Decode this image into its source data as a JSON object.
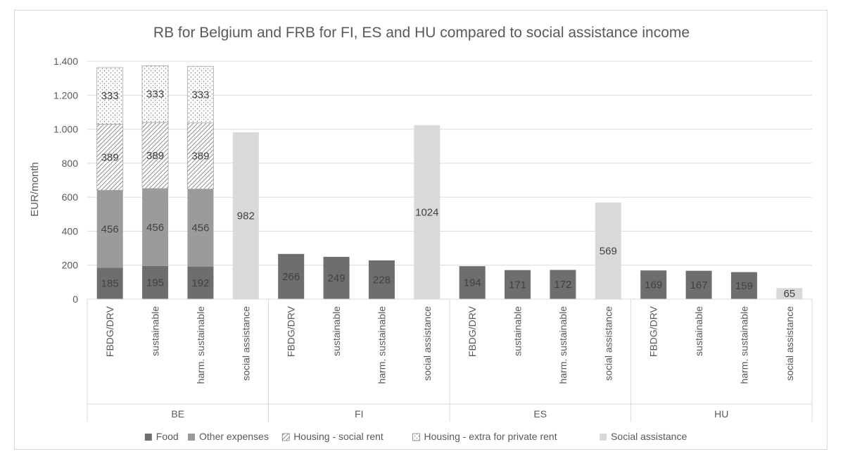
{
  "chart_data": {
    "type": "bar",
    "stacked": true,
    "title": "RB for Belgium and FRB for FI, ES and HU compared to social assistance income",
    "ylabel": "EUR/month",
    "xlabel": "",
    "ylim": [
      0,
      1400
    ],
    "yticks": [
      0,
      200,
      400,
      600,
      800,
      1000,
      1200,
      1400
    ],
    "ytick_labels": [
      "0",
      "200",
      "400",
      "600",
      "800",
      "1.000",
      "1.200",
      "1.400"
    ],
    "grid": true,
    "legend_position": "bottom",
    "groups": [
      {
        "name": "BE",
        "categories": [
          "FBDG/DRV",
          "sustainable",
          "harm. sustainable",
          "social assistance"
        ]
      },
      {
        "name": "FI",
        "categories": [
          "FBDG/DRV",
          "sustainable",
          "harm. sustainable",
          "social assistance"
        ]
      },
      {
        "name": "ES",
        "categories": [
          "FBDG/DRV",
          "sustainable",
          "harm. sustainable",
          "social assistance"
        ]
      },
      {
        "name": "HU",
        "categories": [
          "FBDG/DRV",
          "sustainable",
          "harm. sustainable",
          "social assistance"
        ]
      }
    ],
    "series": [
      {
        "name": "Food",
        "color": "#6e6e6e",
        "pattern": "solid",
        "values": [
          185,
          195,
          192,
          null,
          266,
          249,
          228,
          null,
          194,
          171,
          172,
          null,
          169,
          167,
          159,
          null
        ]
      },
      {
        "name": "Other expenses",
        "color": "#9b9b9b",
        "pattern": "solid",
        "values": [
          456,
          456,
          456,
          null,
          null,
          null,
          null,
          null,
          null,
          null,
          null,
          null,
          null,
          null,
          null,
          null
        ]
      },
      {
        "name": "Housing - social rent",
        "color": "#ffffff",
        "pattern": "diagonal",
        "values": [
          389,
          389,
          389,
          null,
          null,
          null,
          null,
          null,
          null,
          null,
          null,
          null,
          null,
          null,
          null,
          null
        ]
      },
      {
        "name": "Housing - extra for private rent",
        "color": "#ffffff",
        "pattern": "dots",
        "values": [
          333,
          333,
          333,
          null,
          null,
          null,
          null,
          null,
          null,
          null,
          null,
          null,
          null,
          null,
          null,
          null
        ]
      },
      {
        "name": "Social assistance",
        "color": "#d9d9d9",
        "pattern": "solid",
        "values": [
          null,
          null,
          null,
          982,
          null,
          null,
          null,
          1024,
          null,
          null,
          null,
          569,
          null,
          null,
          null,
          65
        ]
      }
    ]
  }
}
